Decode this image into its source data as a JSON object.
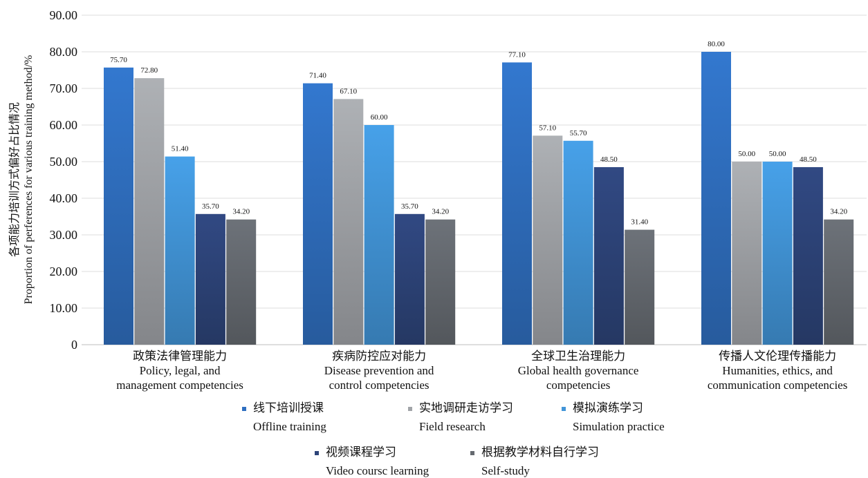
{
  "chart_data": {
    "type": "bar",
    "title": "",
    "ylabel_lines": [
      "各项能力培训方式偏好占比情况",
      "Proportion of perferences for various training method/%"
    ],
    "ylim": [
      0,
      90
    ],
    "ytick_labels": [
      "0",
      "10.00",
      "20.00",
      "30.00",
      "40.00",
      "50.00",
      "60.00",
      "70.00",
      "80.00",
      "90.00"
    ],
    "grid": true,
    "legend_position": "bottom",
    "categories": [
      [
        "政策法律管理能力",
        "Policy, legal, and",
        "management competencies"
      ],
      [
        "疾病防控应对能力",
        "Disease prevention and",
        "control competencies"
      ],
      [
        "全球卫生治理能力",
        "Global health governance",
        "competencies"
      ],
      [
        "传播人文伦理传播能力",
        "Humanities, ethics, and",
        "communication competencies"
      ]
    ],
    "series": [
      {
        "name": [
          "线下培训授课",
          "Offline training"
        ],
        "color": "#2f6fc0",
        "values": [
          75.7,
          71.4,
          77.1,
          80.0
        ],
        "labels": [
          "75.70",
          "71.40",
          "77.10",
          "80.00"
        ]
      },
      {
        "name": [
          "实地调研走访学习",
          "Field research"
        ],
        "color": "#a1a4a8",
        "values": [
          72.8,
          67.1,
          57.1,
          50.0
        ],
        "labels": [
          "72.80",
          "67.10",
          "57.10",
          "50.00"
        ]
      },
      {
        "name": [
          "模拟演练学习",
          "Simulation practice"
        ],
        "color": "#4295d8",
        "values": [
          51.4,
          60.0,
          55.7,
          50.0
        ],
        "labels": [
          "51.40",
          "60.00",
          "55.70",
          "50.00"
        ]
      },
      {
        "name": [
          "视频课程学习",
          "Video coursc learning"
        ],
        "color": "#2d4479",
        "values": [
          35.7,
          35.7,
          48.5,
          48.5
        ],
        "labels": [
          "35.70",
          "35.70",
          "48.50",
          "48.50"
        ]
      },
      {
        "name": [
          "根据教学材料自行学习",
          "Self-study"
        ],
        "color": "#656a70",
        "values": [
          34.2,
          34.2,
          31.4,
          34.2
        ],
        "labels": [
          "34.20",
          "34.20",
          "31.40",
          "34.20"
        ]
      }
    ]
  }
}
